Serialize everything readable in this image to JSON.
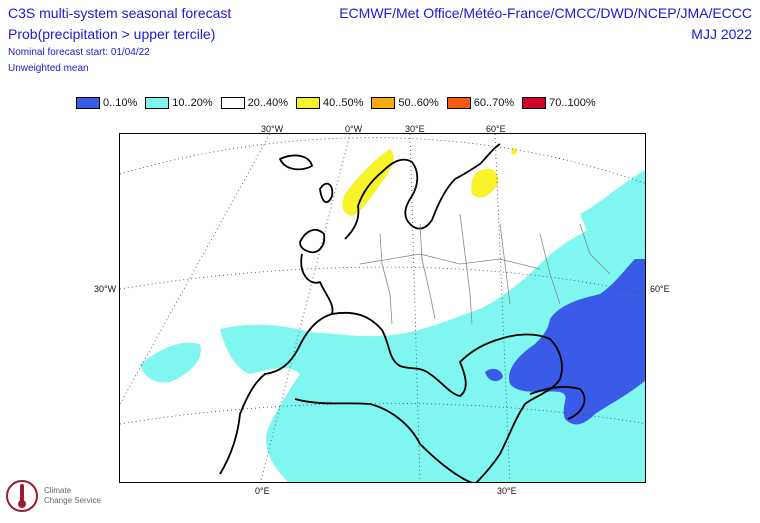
{
  "header": {
    "title_line1": "C3S multi-system seasonal forecast",
    "title_line2": "Prob(precipitation > upper tercile)",
    "forecast_start": "Nominal forecast start: 01/04/22",
    "weighting": "Unweighted mean",
    "systems": "ECMWF/Met Office/Météo-France/CMCC/DWD/NCEP/JMA/ECCC",
    "season": "MJJ 2022"
  },
  "legend": [
    {
      "label": "0..10%",
      "color": "#3a5ae8"
    },
    {
      "label": "10..20%",
      "color": "#7ff6f0"
    },
    {
      "label": "20..40%",
      "color": "#ffffff"
    },
    {
      "label": "40..50%",
      "color": "#f8f22a"
    },
    {
      "label": "50..60%",
      "color": "#fba80e"
    },
    {
      "label": "60..70%",
      "color": "#f85a10"
    },
    {
      "label": "70..100%",
      "color": "#d2042f"
    }
  ],
  "axes": {
    "top": [
      "30°W",
      "0°W",
      "30°E",
      "60°E"
    ],
    "left": "30°W",
    "right": "60°E",
    "bottom": [
      "0°E",
      "30°E"
    ]
  },
  "logo": {
    "text1": "Climate",
    "text2": "Change Service",
    "icon": "thermometer-circle-icon"
  }
}
